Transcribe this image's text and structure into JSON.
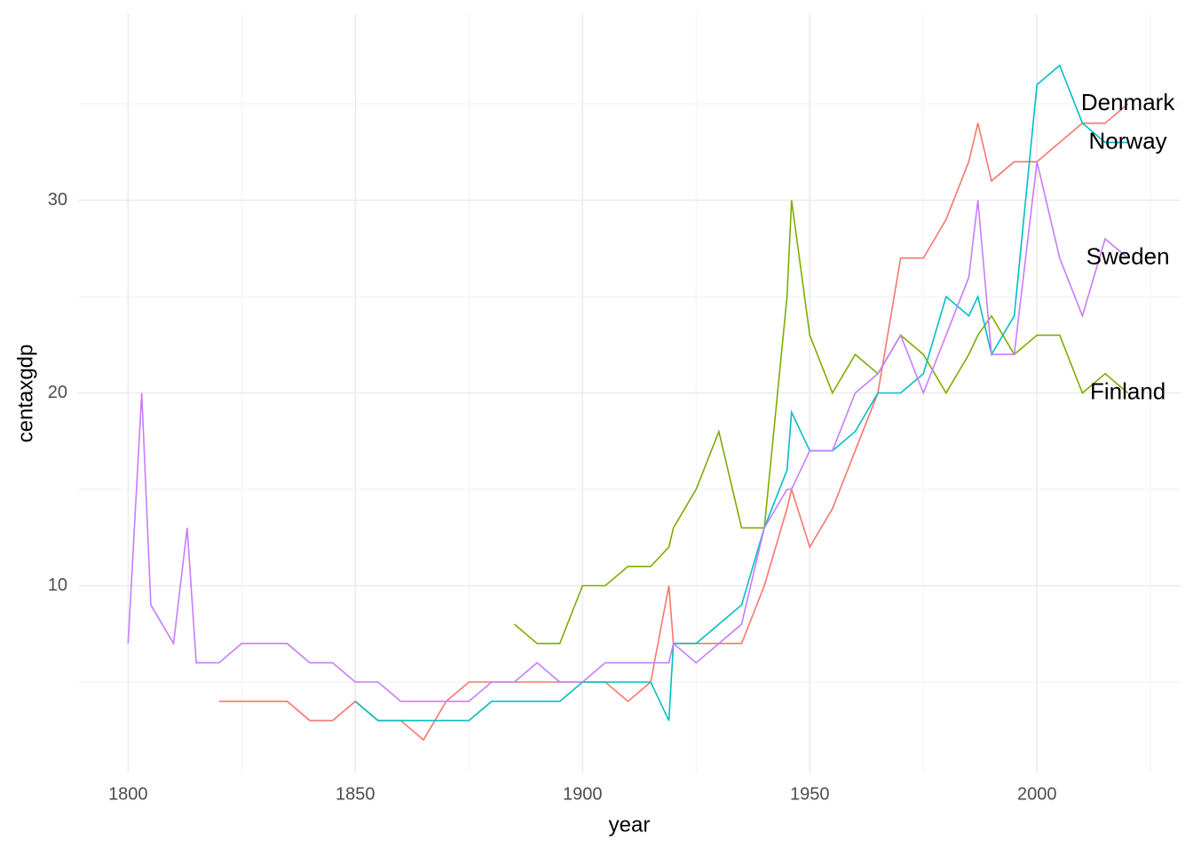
{
  "chart_data": {
    "type": "line",
    "x_label": "year",
    "y_label": "centaxgdp",
    "x": [
      1800,
      1803,
      1805,
      1810,
      1813,
      1815,
      1820,
      1825,
      1830,
      1835,
      1840,
      1845,
      1850,
      1855,
      1860,
      1865,
      1870,
      1875,
      1880,
      1885,
      1890,
      1895,
      1900,
      1905,
      1910,
      1915,
      1919,
      1920,
      1925,
      1930,
      1935,
      1940,
      1945,
      1946,
      1950,
      1955,
      1960,
      1965,
      1970,
      1975,
      1980,
      1985,
      1987,
      1990,
      1995,
      2000,
      2005,
      2010,
      2015,
      2020
    ],
    "series": [
      {
        "name": "Denmark",
        "color": "#F8766D",
        "values": [
          null,
          null,
          null,
          null,
          null,
          null,
          4,
          4,
          4,
          4,
          3,
          3,
          4,
          3,
          3,
          2,
          4,
          5,
          5,
          5,
          5,
          5,
          5,
          5,
          4,
          5,
          10,
          7,
          7,
          7,
          7,
          10,
          14,
          15,
          12,
          14,
          17,
          20,
          27,
          27,
          29,
          32,
          34,
          31,
          32,
          32,
          33,
          34,
          34,
          35
        ]
      },
      {
        "name": "Finland",
        "color": "#7CAE00",
        "values": [
          null,
          null,
          null,
          null,
          null,
          null,
          null,
          null,
          null,
          null,
          null,
          null,
          null,
          null,
          null,
          null,
          null,
          null,
          null,
          8,
          7,
          7,
          10,
          10,
          11,
          11,
          12,
          13,
          15,
          18,
          13,
          13,
          25,
          30,
          23,
          20,
          22,
          21,
          23,
          22,
          20,
          22,
          23,
          24,
          22,
          23,
          23,
          20,
          21,
          20
        ]
      },
      {
        "name": "Norway",
        "color": "#00BFC4",
        "values": [
          null,
          null,
          null,
          null,
          null,
          null,
          null,
          null,
          null,
          null,
          null,
          null,
          4,
          3,
          3,
          3,
          3,
          3,
          4,
          4,
          4,
          4,
          5,
          5,
          5,
          5,
          3,
          7,
          7,
          8,
          9,
          13,
          16,
          19,
          17,
          17,
          18,
          20,
          20,
          21,
          25,
          24,
          25,
          22,
          24,
          36,
          37,
          34,
          33,
          33
        ]
      },
      {
        "name": "Sweden",
        "color": "#C77CFF",
        "values": [
          7,
          20,
          9,
          7,
          13,
          6,
          6,
          7,
          7,
          7,
          6,
          6,
          5,
          5,
          4,
          4,
          4,
          4,
          5,
          5,
          6,
          5,
          5,
          6,
          6,
          6,
          6,
          7,
          6,
          7,
          8,
          13,
          15,
          15,
          17,
          17,
          20,
          21,
          23,
          20,
          23,
          26,
          30,
          22,
          22,
          32,
          27,
          24,
          28,
          27
        ]
      }
    ],
    "xlim": [
      1789,
      2031.6
    ],
    "ylim": [
      0.3,
      39.7
    ],
    "xticks": [
      1800,
      1850,
      1900,
      1950,
      2000
    ],
    "yticks": [
      10,
      20,
      30
    ],
    "x_minor_ticks": [
      1825,
      1875,
      1925,
      1975,
      2025
    ],
    "y_minor_ticks": [
      5,
      15,
      25,
      35
    ],
    "grid": true
  }
}
